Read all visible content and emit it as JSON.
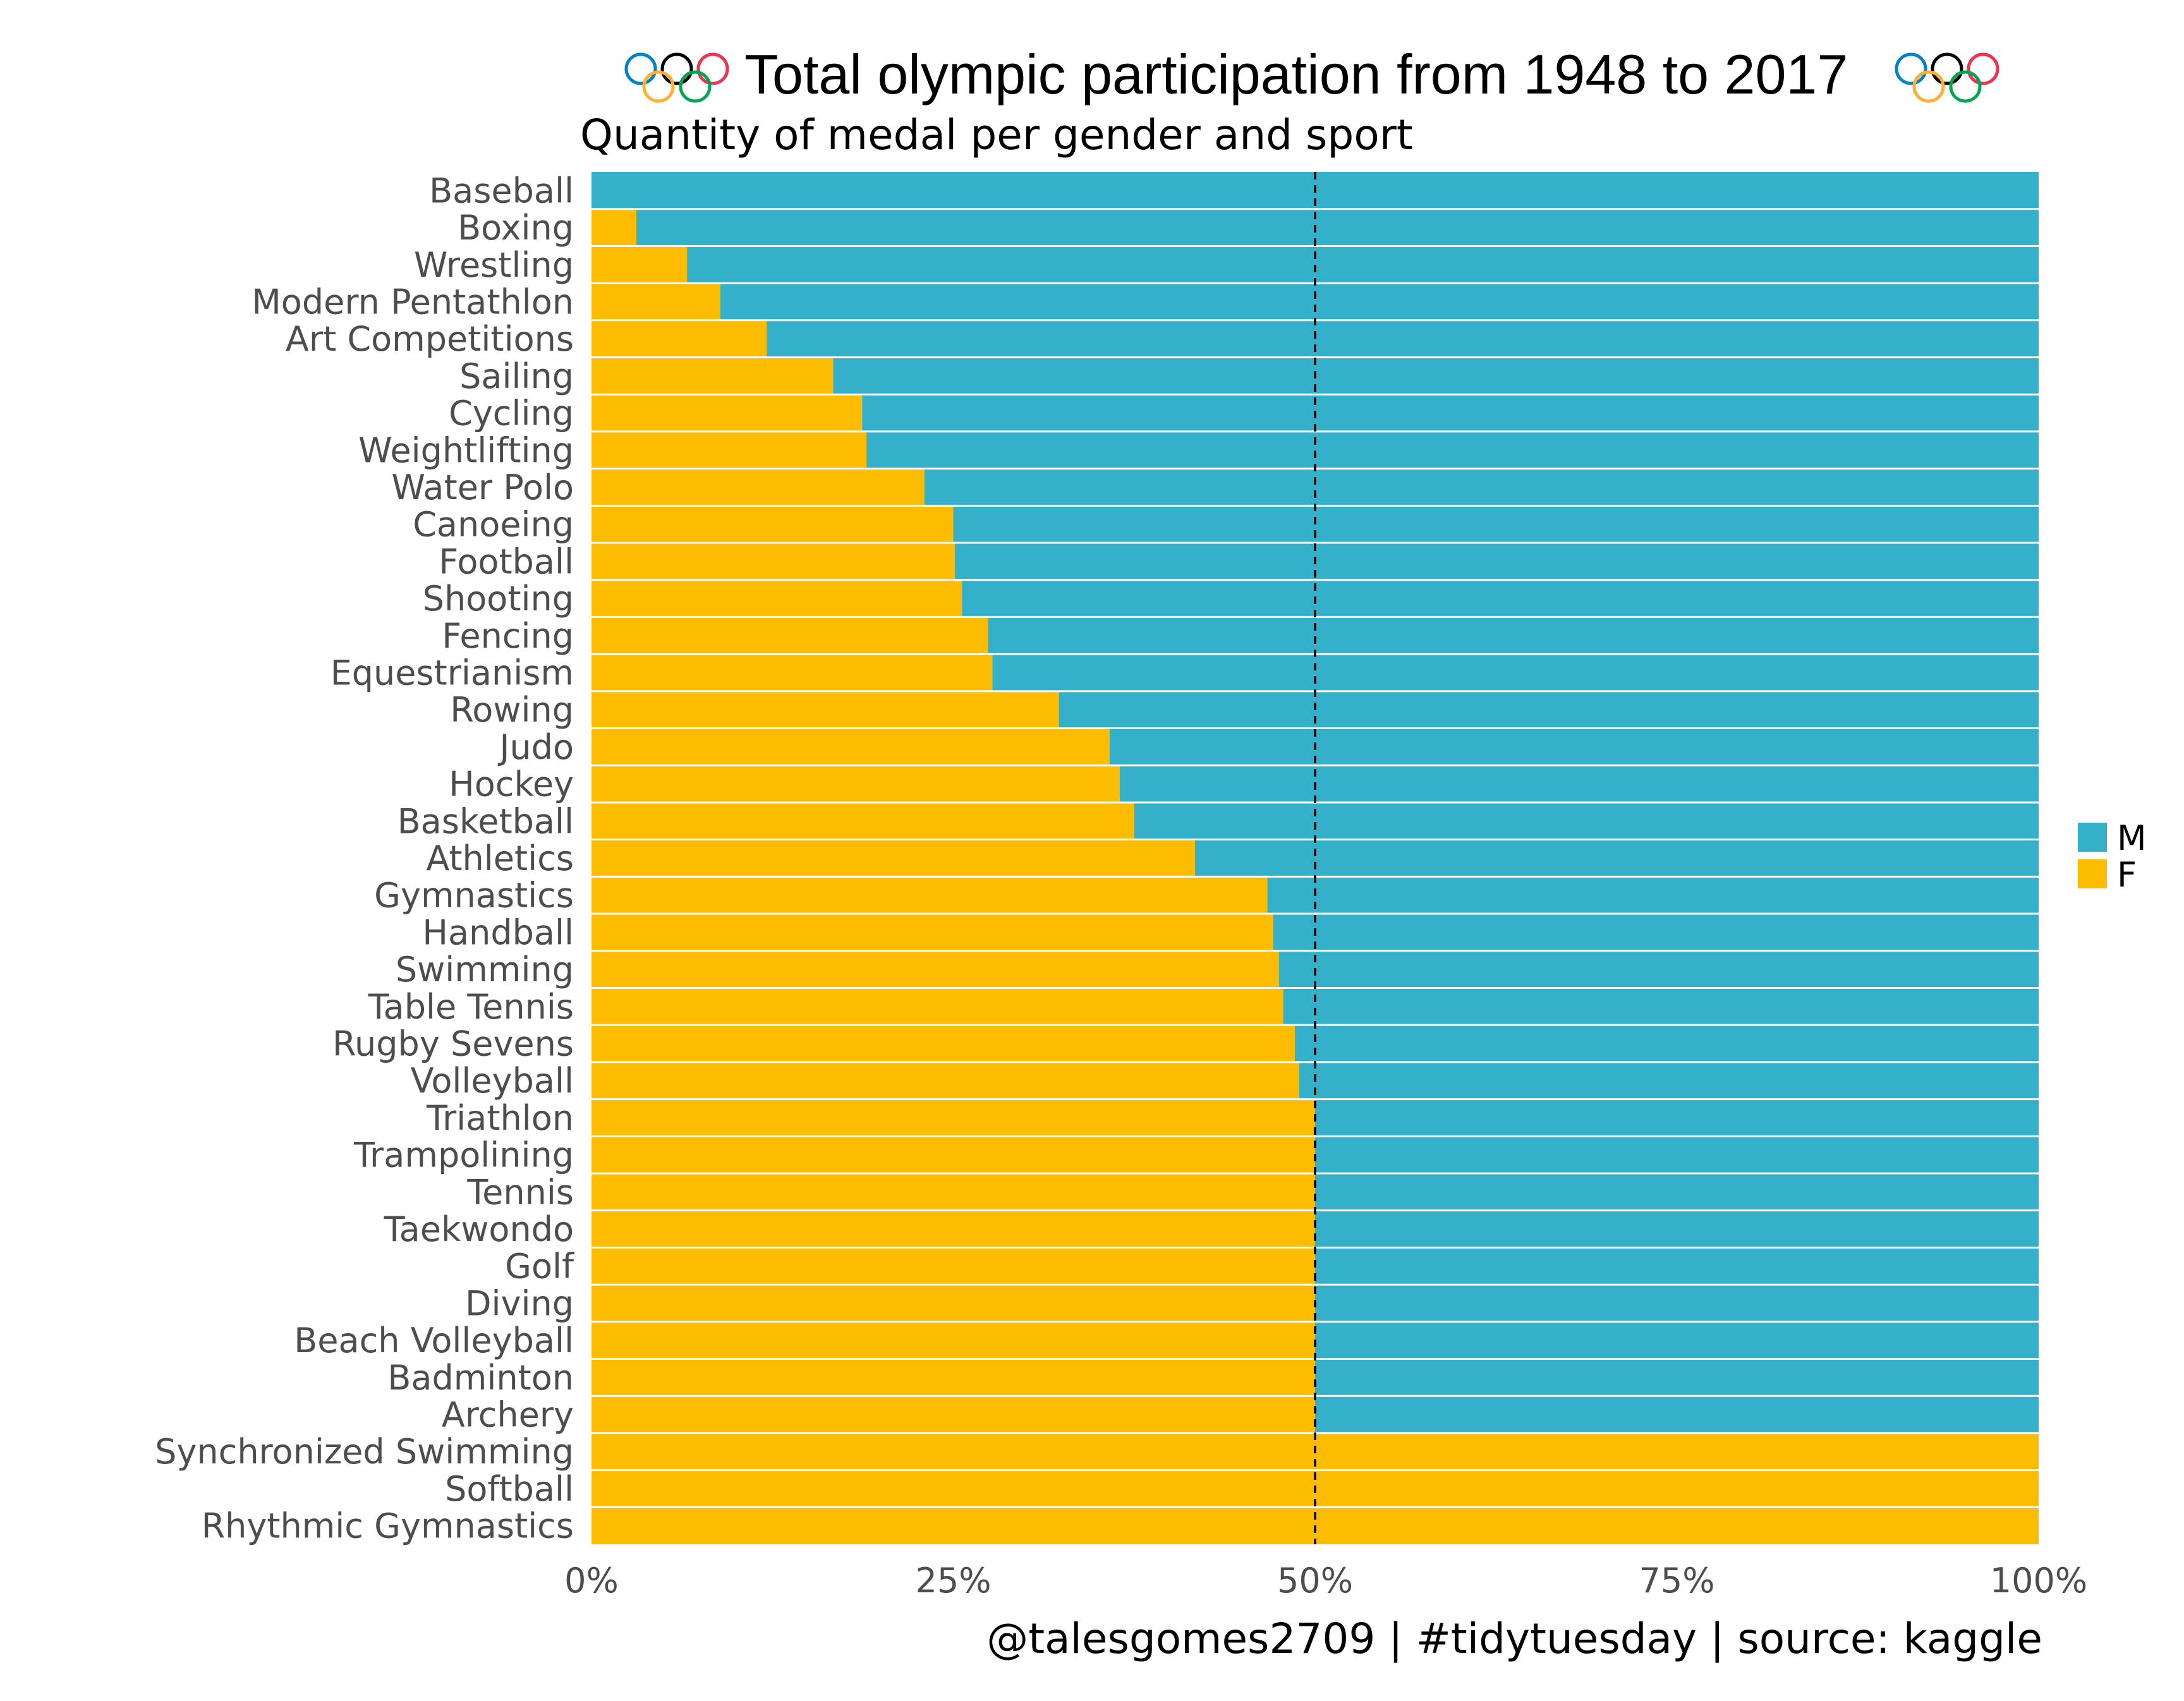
{
  "colors": {
    "male": "#35B0CA",
    "female": "#FDBC00",
    "divider": "#ffffff",
    "reference_line": "#000000"
  },
  "icons": {
    "title_left": "olympic-rings-icon",
    "title_right": "olympic-rings-icon",
    "ring_colors": [
      "#0081C8",
      "#000000",
      "#EE334E",
      "#FCB131",
      "#00A651"
    ]
  },
  "header": {
    "title": "Total olympic participation from 1948 to 2017",
    "subtitle": "Quantity of medal per gender and sport"
  },
  "footer": {
    "caption": "@talesgomes2709 | #tidytuesday | source: kaggle"
  },
  "chart_data": {
    "type": "bar",
    "orientation": "horizontal",
    "stacked": "percent",
    "xlim": [
      0,
      1
    ],
    "x_ticks": [
      0,
      0.25,
      0.5,
      0.75,
      1
    ],
    "x_tick_labels": [
      "0%",
      "25%",
      "50%",
      "75%",
      "100%"
    ],
    "reference_line": 0.5,
    "legend": {
      "position": "right",
      "entries": [
        "M",
        "F"
      ]
    },
    "grid": false,
    "categories": [
      "Baseball",
      "Boxing",
      "Wrestling",
      "Modern Pentathlon",
      "Art Competitions",
      "Sailing",
      "Cycling",
      "Weightlifting",
      "Water Polo",
      "Canoeing",
      "Football",
      "Shooting",
      "Fencing",
      "Equestrianism",
      "Rowing",
      "Judo",
      "Hockey",
      "Basketball",
      "Athletics",
      "Gymnastics",
      "Handball",
      "Swimming",
      "Table Tennis",
      "Rugby Sevens",
      "Volleyball",
      "Triathlon",
      "Trampolining",
      "Tennis",
      "Taekwondo",
      "Golf",
      "Diving",
      "Beach Volleyball",
      "Badminton",
      "Archery",
      "Synchronized Swimming",
      "Softball",
      "Rhythmic Gymnastics"
    ],
    "series": [
      {
        "name": "F",
        "values": [
          0,
          0.031,
          0.066,
          0.089,
          0.121,
          0.167,
          0.187,
          0.19,
          0.23,
          0.25,
          0.251,
          0.256,
          0.274,
          0.277,
          0.323,
          0.358,
          0.365,
          0.375,
          0.417,
          0.467,
          0.471,
          0.475,
          0.478,
          0.486,
          0.489,
          0.5,
          0.5,
          0.5,
          0.5,
          0.5,
          0.5,
          0.5,
          0.5,
          0.5,
          1,
          1,
          1
        ]
      },
      {
        "name": "M",
        "values": [
          1,
          0.969,
          0.934,
          0.911,
          0.879,
          0.833,
          0.813,
          0.81,
          0.77,
          0.75,
          0.749,
          0.744,
          0.726,
          0.723,
          0.677,
          0.642,
          0.635,
          0.625,
          0.583,
          0.533,
          0.529,
          0.525,
          0.522,
          0.514,
          0.511,
          0.5,
          0.5,
          0.5,
          0.5,
          0.5,
          0.5,
          0.5,
          0.5,
          0.5,
          0,
          0,
          0
        ]
      }
    ]
  }
}
